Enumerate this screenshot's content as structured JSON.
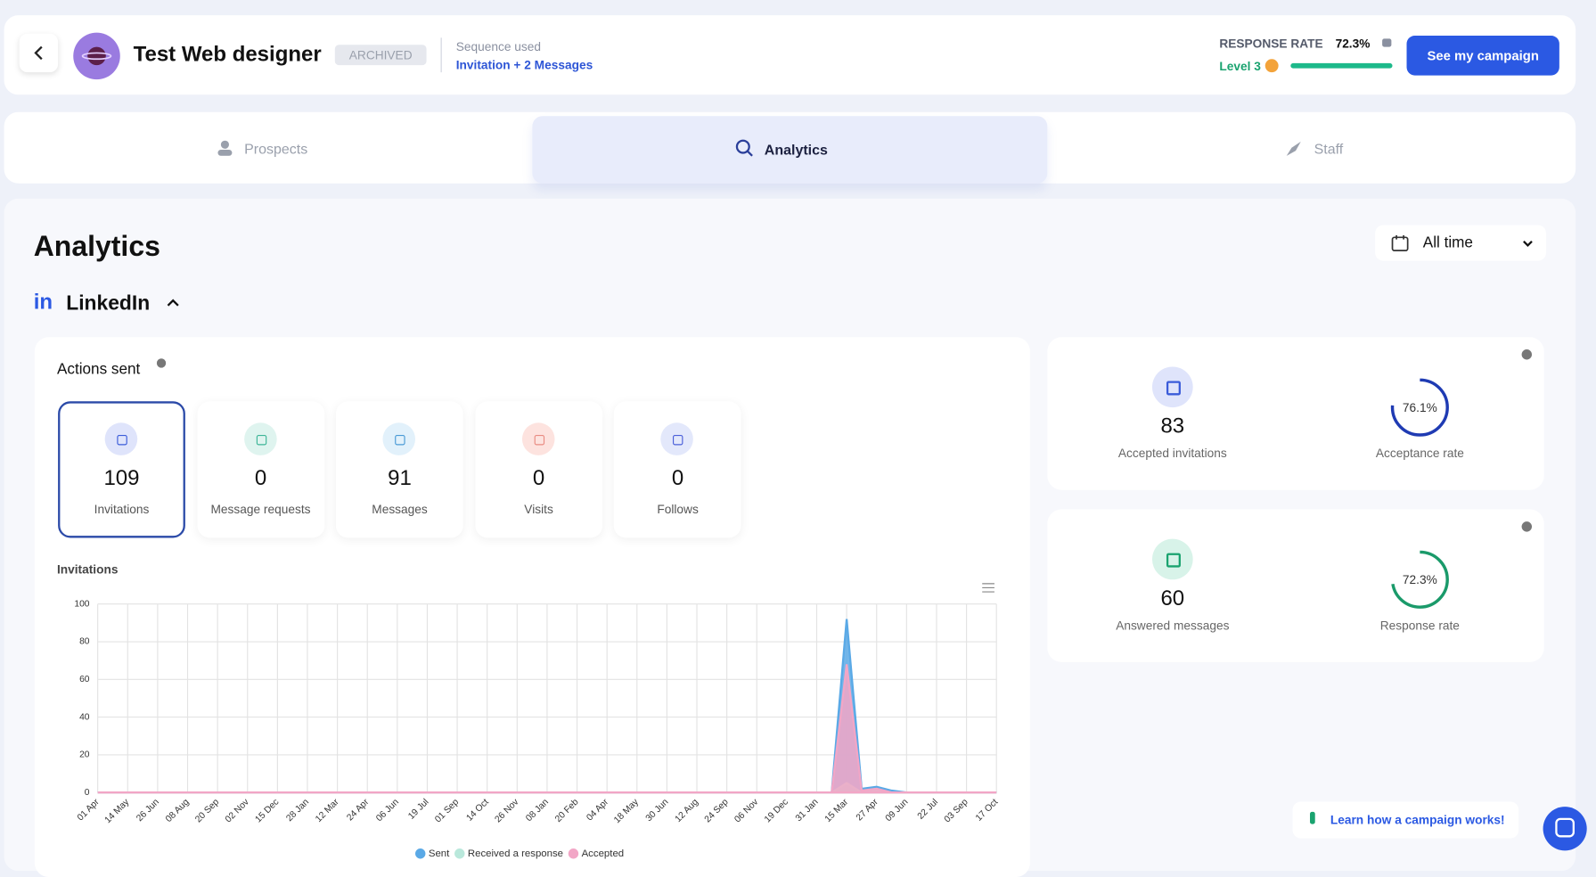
{
  "header": {
    "title": "Test Web designer",
    "status": "ARCHIVED",
    "sequence_label": "Sequence used",
    "sequence": "Invitation + 2 Messages",
    "rate_title": "RESPONSE RATE",
    "rate": "72.3%",
    "level": "Level 3",
    "button": "See my campaign"
  },
  "tabs": [
    "Prospects",
    "Analytics",
    "Staff"
  ],
  "page": {
    "title": "Analytics",
    "filter": "All time",
    "section": "LinkedIn",
    "actions_title": "Actions sent",
    "help": "Learn how a campaign works!"
  },
  "actions": [
    {
      "value": 109,
      "label": "Invitations"
    },
    {
      "value": 0,
      "label": "Message requests"
    },
    {
      "value": 91,
      "label": "Messages"
    },
    {
      "value": 0,
      "label": "Visits"
    },
    {
      "value": 0,
      "label": "Follows"
    }
  ],
  "stats": [
    {
      "value": 83,
      "label": "Accepted invitations"
    },
    {
      "value": 76.1,
      "value_label": "76.1%",
      "label": "Acceptance rate"
    },
    {
      "value": 60,
      "label": "Answered messages"
    },
    {
      "value": 72.3,
      "value_label": "72.3%",
      "label": "Response rate"
    }
  ],
  "chart_data": {
    "type": "area",
    "title": "Invitations",
    "categories": [
      "01 Apr",
      null,
      "14 May",
      null,
      "26 Jun",
      null,
      "08 Aug",
      null,
      "20 Sep",
      null,
      "02 Nov",
      null,
      "15 Dec",
      null,
      "28 Jan",
      null,
      "12 Mar",
      null,
      "24 Apr",
      null,
      "06 Jun",
      null,
      "19 Jul",
      null,
      "01 Sep",
      null,
      "14 Oct",
      null,
      "26 Nov",
      null,
      "08 Jan",
      null,
      "20 Feb",
      null,
      "04 Apr",
      null,
      "18 May",
      null,
      "30 Jun",
      null,
      "12 Aug",
      null,
      "24 Sep",
      null,
      "06 Nov",
      null,
      "19 Dec",
      null,
      "31 Jan",
      null,
      "15 Mar",
      null,
      "27 Apr",
      null,
      "09 Jun",
      null,
      "22 Jul",
      null,
      "03 Sep",
      null,
      "17 Oct"
    ],
    "series": [
      {
        "name": "Sent",
        "color": "#5aa9e6",
        "values": [
          0,
          0,
          0,
          0,
          0,
          0,
          0,
          0,
          0,
          0,
          0,
          0,
          0,
          0,
          0,
          0,
          0,
          0,
          0,
          0,
          0,
          0,
          0,
          0,
          0,
          0,
          0,
          0,
          0,
          0,
          0,
          0,
          0,
          0,
          0,
          0,
          0,
          0,
          0,
          0,
          0,
          0,
          0,
          0,
          0,
          0,
          0,
          0,
          0,
          0,
          92,
          2,
          3,
          1,
          0,
          0,
          0,
          0,
          0,
          0,
          0
        ]
      },
      {
        "name": "Received a response",
        "color": "#b9e8db",
        "values": [
          0,
          0,
          0,
          0,
          0,
          0,
          0,
          0,
          0,
          0,
          0,
          0,
          0,
          0,
          0,
          0,
          0,
          0,
          0,
          0,
          0,
          0,
          0,
          0,
          0,
          0,
          0,
          0,
          0,
          0,
          0,
          0,
          0,
          0,
          0,
          0,
          0,
          0,
          0,
          0,
          0,
          0,
          0,
          0,
          0,
          0,
          0,
          0,
          0,
          0,
          5,
          0,
          1,
          0,
          0,
          0,
          0,
          0,
          0,
          0,
          0
        ]
      },
      {
        "name": "Accepted",
        "color": "#f2a6c6",
        "values": [
          0,
          0,
          0,
          0,
          0,
          0,
          0,
          0,
          0,
          0,
          0,
          0,
          0,
          0,
          0,
          0,
          0,
          0,
          0,
          0,
          0,
          0,
          0,
          0,
          0,
          0,
          0,
          0,
          0,
          0,
          0,
          0,
          0,
          0,
          0,
          0,
          0,
          0,
          0,
          0,
          0,
          0,
          0,
          0,
          0,
          0,
          0,
          0,
          0,
          0,
          68,
          1,
          2,
          0,
          0,
          0,
          0,
          0,
          0,
          0,
          0
        ]
      }
    ],
    "ylim": [
      0,
      100
    ],
    "yticks": [
      0,
      20,
      40,
      60,
      80,
      100
    ],
    "grid": true
  }
}
